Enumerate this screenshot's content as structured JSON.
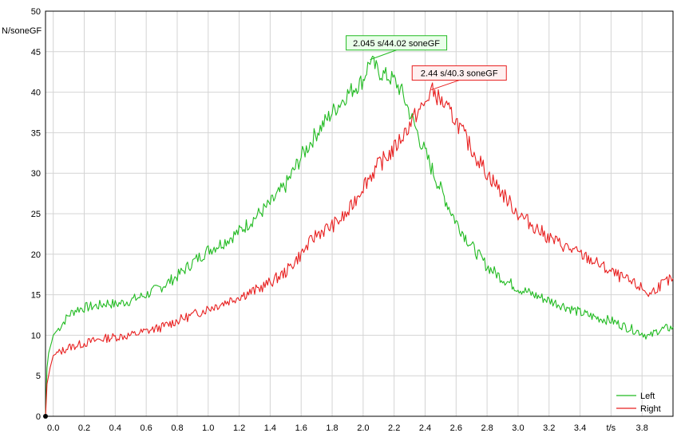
{
  "chart_data": {
    "type": "line",
    "title": "",
    "xlabel": "t/s",
    "ylabel": "N/soneGF",
    "xlim": [
      -0.05,
      4.0
    ],
    "ylim": [
      0,
      50
    ],
    "grid": true,
    "legend_position": "bottom-right",
    "x_ticks": [
      "0.0",
      "0.2",
      "0.4",
      "0.6",
      "0.8",
      "1.0",
      "1.2",
      "1.4",
      "1.6",
      "1.8",
      "2.0",
      "2.2",
      "2.4",
      "2.6",
      "2.8",
      "3.0",
      "3.2",
      "3.4",
      "t/s",
      "3.8"
    ],
    "y_ticks": [
      "0",
      "5",
      "10",
      "15",
      "20",
      "25",
      "30",
      "35",
      "40",
      "45",
      "50"
    ],
    "series": [
      {
        "name": "Left",
        "color": "#22bb22",
        "points": [
          [
            -0.05,
            0
          ],
          [
            -0.04,
            6
          ],
          [
            -0.03,
            7.8
          ],
          [
            -0.01,
            9.2
          ],
          [
            0.0,
            10
          ],
          [
            0.05,
            11.2
          ],
          [
            0.1,
            12.5
          ],
          [
            0.15,
            13.2
          ],
          [
            0.2,
            13.4
          ],
          [
            0.3,
            13.7
          ],
          [
            0.35,
            14.0
          ],
          [
            0.4,
            13.8
          ],
          [
            0.5,
            14.3
          ],
          [
            0.6,
            15.0
          ],
          [
            0.7,
            16.0
          ],
          [
            0.8,
            17.3
          ],
          [
            0.9,
            19.0
          ],
          [
            1.0,
            20.5
          ],
          [
            1.1,
            21.5
          ],
          [
            1.2,
            22.8
          ],
          [
            1.3,
            24.5
          ],
          [
            1.4,
            26.2
          ],
          [
            1.5,
            28.5
          ],
          [
            1.6,
            32.0
          ],
          [
            1.7,
            35.0
          ],
          [
            1.8,
            37.5
          ],
          [
            1.9,
            39.8
          ],
          [
            2.0,
            41.5
          ],
          [
            2.045,
            44.02
          ],
          [
            2.1,
            42.5
          ],
          [
            2.2,
            41.5
          ],
          [
            2.25,
            40.0
          ],
          [
            2.3,
            37.5
          ],
          [
            2.35,
            35.0
          ],
          [
            2.4,
            32.5
          ],
          [
            2.5,
            28.0
          ],
          [
            2.6,
            24.0
          ],
          [
            2.7,
            21.0
          ],
          [
            2.8,
            18.5
          ],
          [
            2.9,
            17.0
          ],
          [
            3.0,
            15.8
          ],
          [
            3.1,
            15.0
          ],
          [
            3.2,
            14.3
          ],
          [
            3.3,
            13.6
          ],
          [
            3.4,
            12.8
          ],
          [
            3.5,
            12.2
          ],
          [
            3.6,
            11.8
          ],
          [
            3.7,
            11.0
          ],
          [
            3.8,
            10.3
          ],
          [
            3.85,
            9.8
          ],
          [
            3.9,
            10.6
          ],
          [
            4.0,
            11.0
          ]
        ]
      },
      {
        "name": "Right",
        "color": "#e82020",
        "points": [
          [
            -0.05,
            0
          ],
          [
            -0.04,
            4
          ],
          [
            -0.02,
            6
          ],
          [
            0.0,
            7.5
          ],
          [
            0.1,
            8.5
          ],
          [
            0.2,
            9.0
          ],
          [
            0.3,
            9.5
          ],
          [
            0.4,
            9.8
          ],
          [
            0.5,
            10.0
          ],
          [
            0.6,
            10.5
          ],
          [
            0.7,
            11.0
          ],
          [
            0.8,
            11.8
          ],
          [
            0.9,
            12.5
          ],
          [
            1.0,
            13.3
          ],
          [
            1.1,
            14.0
          ],
          [
            1.2,
            14.8
          ],
          [
            1.3,
            15.5
          ],
          [
            1.4,
            16.5
          ],
          [
            1.5,
            17.8
          ],
          [
            1.6,
            20.0
          ],
          [
            1.7,
            22.5
          ],
          [
            1.8,
            23.5
          ],
          [
            1.9,
            25.0
          ],
          [
            2.0,
            28.5
          ],
          [
            2.1,
            31.0
          ],
          [
            2.2,
            33.0
          ],
          [
            2.3,
            36.0
          ],
          [
            2.35,
            37.5
          ],
          [
            2.4,
            38.5
          ],
          [
            2.44,
            40.3
          ],
          [
            2.5,
            39.0
          ],
          [
            2.6,
            36.5
          ],
          [
            2.7,
            33.0
          ],
          [
            2.8,
            30.0
          ],
          [
            2.9,
            27.5
          ],
          [
            3.0,
            25.0
          ],
          [
            3.1,
            23.5
          ],
          [
            3.2,
            22.0
          ],
          [
            3.3,
            21.0
          ],
          [
            3.4,
            20.0
          ],
          [
            3.5,
            19.0
          ],
          [
            3.6,
            17.8
          ],
          [
            3.7,
            16.8
          ],
          [
            3.8,
            15.8
          ],
          [
            3.85,
            15.0
          ],
          [
            3.9,
            16.0
          ],
          [
            4.0,
            17.0
          ]
        ]
      }
    ],
    "annotations": [
      {
        "text": "2.045 s/44.02 soneGF",
        "x": 2.045,
        "y": 44.02,
        "series": "Left"
      },
      {
        "text": "2.44 s/40.3 soneGF",
        "x": 2.44,
        "y": 40.3,
        "series": "Right"
      }
    ]
  }
}
